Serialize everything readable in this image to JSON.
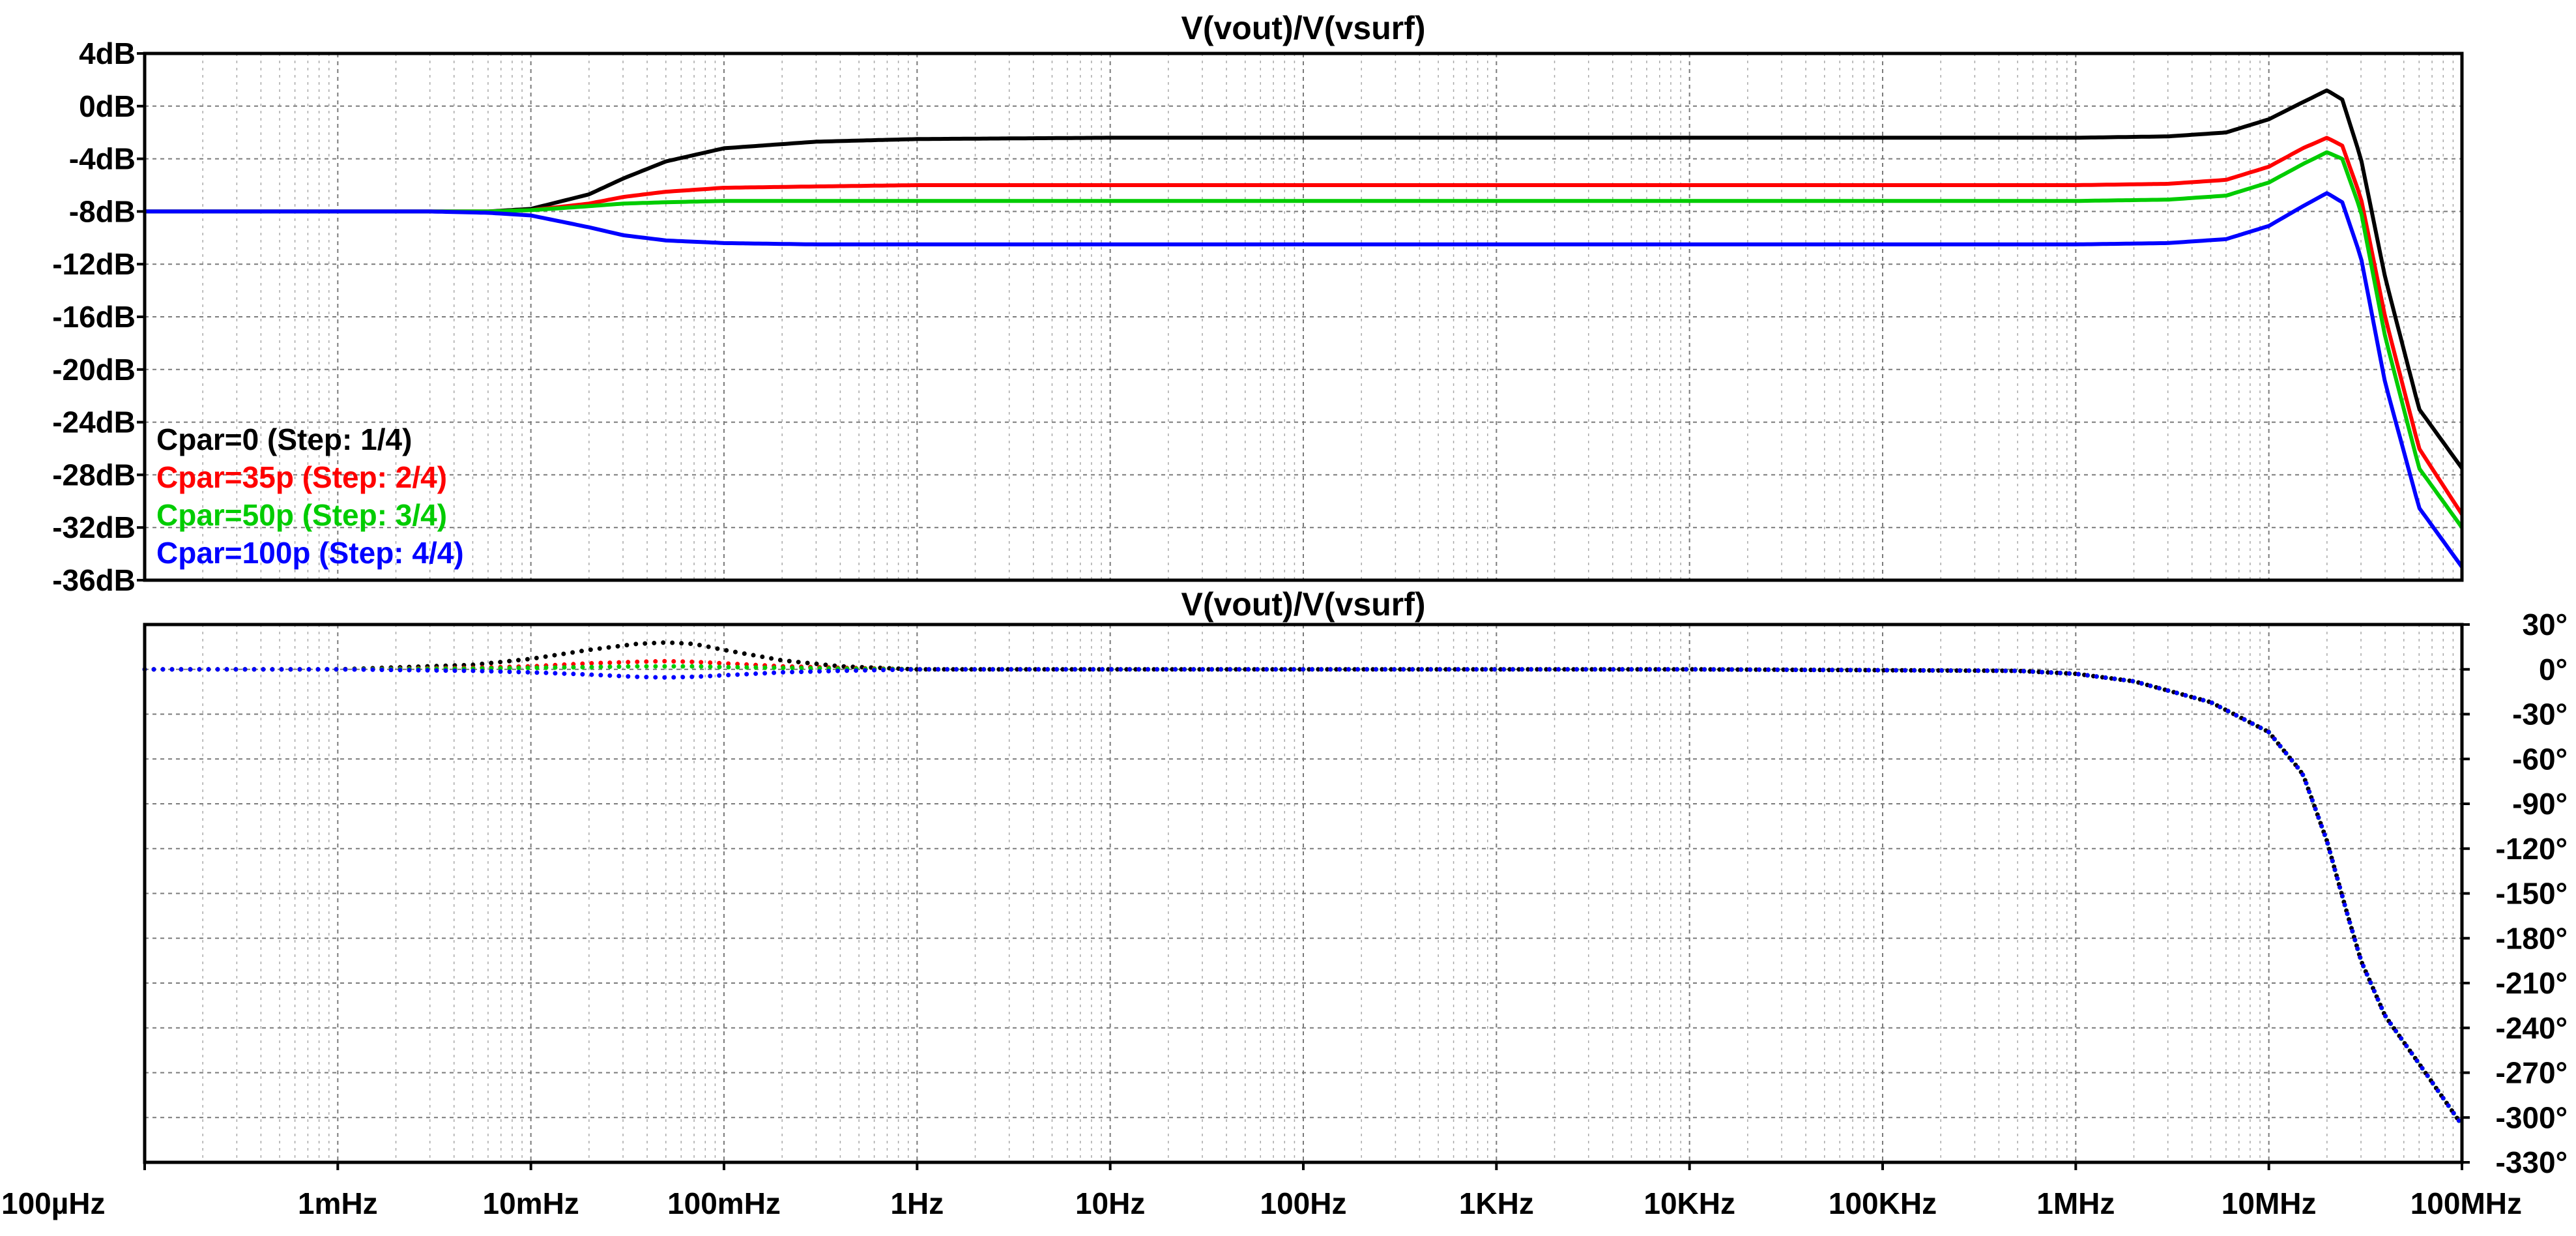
{
  "chart_data": [
    {
      "type": "line",
      "title": "V(vout)/V(vsurf)",
      "x_scale": "log",
      "xlim_hz": [
        0.0001,
        100000000
      ],
      "ylim_db": [
        -36,
        4
      ],
      "y_ticks": [
        "4dB",
        "0dB",
        "-4dB",
        "-8dB",
        "-12dB",
        "-16dB",
        "-20dB",
        "-24dB",
        "-28dB",
        "-32dB",
        "-36dB"
      ],
      "grid": true,
      "legend": "bottom-left",
      "x_hz": [
        0.0001,
        0.001,
        0.003,
        0.006,
        0.01,
        0.02,
        0.03,
        0.05,
        0.1,
        0.3,
        1,
        10,
        1000,
        100000,
        1000000,
        3000000,
        6000000,
        10000000,
        15000000,
        20000000,
        24000000,
        30000000,
        40000000,
        60000000,
        100000000
      ],
      "series": [
        {
          "name": "Cpar=0  (Step: 1/4)",
          "color": "#000000",
          "values": [
            -8,
            -8,
            -8,
            -8,
            -7.8,
            -6.7,
            -5.5,
            -4.2,
            -3.2,
            -2.7,
            -2.5,
            -2.4,
            -2.4,
            -2.4,
            -2.4,
            -2.3,
            -2.0,
            -1.0,
            0.3,
            1.2,
            0.5,
            -4.0,
            -13.0,
            -23.0,
            -27.5
          ]
        },
        {
          "name": "Cpar=35p  (Step: 2/4)",
          "color": "#ff0000",
          "values": [
            -8,
            -8,
            -8,
            -8,
            -7.9,
            -7.4,
            -6.9,
            -6.5,
            -6.2,
            -6.1,
            -6.0,
            -6.0,
            -6.0,
            -6.0,
            -6.0,
            -5.9,
            -5.6,
            -4.6,
            -3.2,
            -2.4,
            -3.0,
            -7.0,
            -16.0,
            -26.0,
            -31.0
          ]
        },
        {
          "name": "Cpar=50p  (Step: 3/4)",
          "color": "#00cc00",
          "values": [
            -8,
            -8,
            -8,
            -8,
            -7.9,
            -7.6,
            -7.4,
            -7.3,
            -7.2,
            -7.2,
            -7.2,
            -7.2,
            -7.2,
            -7.2,
            -7.2,
            -7.1,
            -6.8,
            -5.8,
            -4.4,
            -3.5,
            -4.0,
            -8.0,
            -17.5,
            -27.5,
            -32.0
          ]
        },
        {
          "name": "Cpar=100p  (Step: 4/4)",
          "color": "#0000ff",
          "values": [
            -8,
            -8,
            -8,
            -8.1,
            -8.3,
            -9.2,
            -9.8,
            -10.2,
            -10.4,
            -10.5,
            -10.5,
            -10.5,
            -10.5,
            -10.5,
            -10.5,
            -10.4,
            -10.1,
            -9.1,
            -7.6,
            -6.6,
            -7.3,
            -11.5,
            -21.0,
            -30.5,
            -35.0
          ]
        }
      ]
    },
    {
      "type": "scatter",
      "title": "V(vout)/V(vsurf)",
      "x_scale": "log",
      "xlim_hz": [
        0.0001,
        100000000
      ],
      "ylim_deg": [
        -330,
        30
      ],
      "y_ticks": [
        "30°",
        "0°",
        "-30°",
        "-60°",
        "-90°",
        "-120°",
        "-150°",
        "-180°",
        "-210°",
        "-240°",
        "-270°",
        "-300°",
        "-330°"
      ],
      "x_ticks": [
        "100µHz",
        "1mHz",
        "10mHz",
        "100mHz",
        "1Hz",
        "10Hz",
        "100Hz",
        "1KHz",
        "10KHz",
        "100KHz",
        "1MHz",
        "10MHz",
        "100MHz"
      ],
      "grid": true,
      "x_hz": [
        0.0001,
        0.001,
        0.005,
        0.01,
        0.02,
        0.035,
        0.05,
        0.07,
        0.1,
        0.2,
        0.4,
        1,
        10,
        10000,
        500000,
        1000000,
        2000000,
        5000000,
        10000000,
        15000000,
        20000000,
        25000000,
        30000000,
        40000000,
        60000000,
        100000000
      ],
      "series": [
        {
          "name": "Cpar=0  (Step: 1/4)",
          "color": "#000000",
          "values": [
            0,
            0,
            3,
            7,
            13,
            17,
            18,
            17,
            13,
            6,
            2,
            0,
            0,
            0,
            -1,
            -3,
            -8,
            -22,
            -42,
            -70,
            -115,
            -160,
            -195,
            -232,
            -264,
            -305
          ]
        },
        {
          "name": "Cpar=35p  (Step: 2/4)",
          "color": "#ff0000",
          "values": [
            0,
            0,
            1,
            2,
            4,
            5,
            5.5,
            5,
            4,
            2,
            1,
            0,
            0,
            0,
            -1,
            -3,
            -8,
            -22,
            -42,
            -70,
            -115,
            -160,
            -195,
            -232,
            -264,
            -305
          ]
        },
        {
          "name": "Cpar=50p  (Step: 3/4)",
          "color": "#00cc00",
          "values": [
            0,
            0,
            0.5,
            1,
            1.5,
            2,
            2,
            2,
            1.5,
            1,
            0.5,
            0,
            0,
            0,
            -1,
            -3,
            -8,
            -22,
            -42,
            -70,
            -115,
            -160,
            -195,
            -232,
            -264,
            -305
          ]
        },
        {
          "name": "Cpar=100p  (Step: 4/4)",
          "color": "#0000ff",
          "values": [
            0,
            0,
            -1,
            -2,
            -3.5,
            -5,
            -5.5,
            -5,
            -4,
            -2,
            -1,
            0,
            0,
            0,
            -1,
            -3,
            -8,
            -22,
            -42,
            -70,
            -115,
            -160,
            -195,
            -232,
            -264,
            -305
          ]
        }
      ]
    }
  ]
}
